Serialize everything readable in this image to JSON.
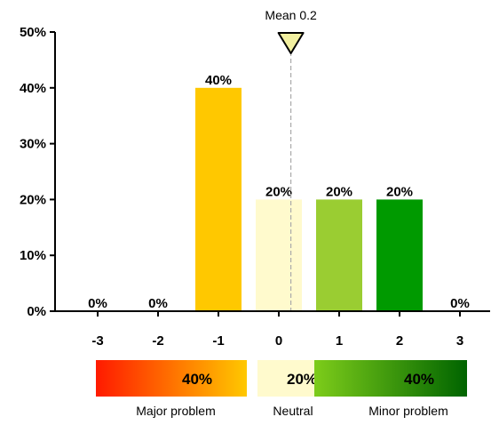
{
  "chart_data": {
    "type": "bar",
    "categories": [
      "-3",
      "-2",
      "-1",
      "0",
      "1",
      "2",
      "3"
    ],
    "values": [
      0,
      0,
      40,
      20,
      20,
      20,
      0
    ],
    "value_labels": [
      "0%",
      "0%",
      "40%",
      "20%",
      "20%",
      "20%",
      "0%"
    ],
    "bar_colors": [
      "#e02020",
      "#f07a10",
      "#ffc800",
      "#fffacd",
      "#9acd32",
      "#009a00",
      "#006400"
    ],
    "ylim": [
      0,
      50
    ],
    "yticks": [
      0,
      10,
      20,
      30,
      40,
      50
    ],
    "ytick_labels": [
      "0%",
      "10%",
      "20%",
      "30%",
      "40%",
      "50%"
    ],
    "grid": false,
    "mean": {
      "value": 0.2,
      "label": "Mean 0.2",
      "marker_color": "#f2f0a0"
    },
    "summary": [
      {
        "name": "Major problem",
        "percent": "40%",
        "color_start": "#ff1a00",
        "color_end": "#ffc800"
      },
      {
        "name": "Neutral",
        "percent": "20%",
        "color_start": "#fffacd",
        "color_end": "#fffacd"
      },
      {
        "name": "Minor problem",
        "percent": "40%",
        "color_start": "#7dcc1a",
        "color_end": "#006400"
      }
    ]
  }
}
